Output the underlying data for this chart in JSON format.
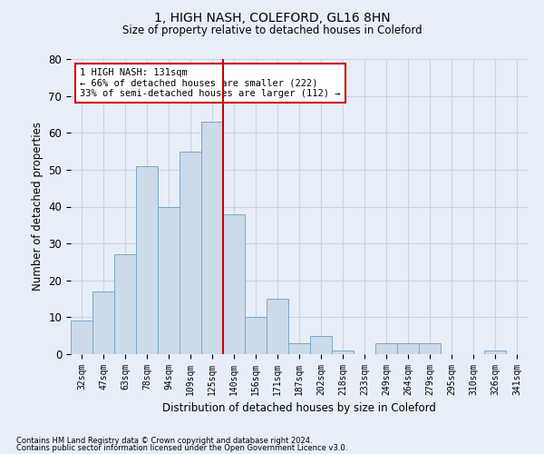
{
  "title": "1, HIGH NASH, COLEFORD, GL16 8HN",
  "subtitle": "Size of property relative to detached houses in Coleford",
  "xlabel": "Distribution of detached houses by size in Coleford",
  "ylabel": "Number of detached properties",
  "categories": [
    "32sqm",
    "47sqm",
    "63sqm",
    "78sqm",
    "94sqm",
    "109sqm",
    "125sqm",
    "140sqm",
    "156sqm",
    "171sqm",
    "187sqm",
    "202sqm",
    "218sqm",
    "233sqm",
    "249sqm",
    "264sqm",
    "279sqm",
    "295sqm",
    "310sqm",
    "326sqm",
    "341sqm"
  ],
  "bar_heights": [
    9,
    17,
    27,
    51,
    40,
    55,
    63,
    38,
    10,
    15,
    3,
    5,
    1,
    0,
    3,
    3,
    3,
    0,
    0,
    1,
    0
  ],
  "bar_color": "#ccdaea",
  "bar_edge_color": "#7aaac4",
  "property_line_x": 6.5,
  "property_line_color": "#cc0000",
  "ylim": [
    0,
    80
  ],
  "yticks": [
    0,
    10,
    20,
    30,
    40,
    50,
    60,
    70,
    80
  ],
  "annotation_text": "1 HIGH NASH: 131sqm\n← 66% of detached houses are smaller (222)\n33% of semi-detached houses are larger (112) →",
  "annotation_box_color": "#ffffff",
  "annotation_box_edge": "#cc0000",
  "grid_color": "#c8d4e4",
  "background_color": "#e8eef8",
  "footnote1": "Contains HM Land Registry data © Crown copyright and database right 2024.",
  "footnote2": "Contains public sector information licensed under the Open Government Licence v3.0."
}
